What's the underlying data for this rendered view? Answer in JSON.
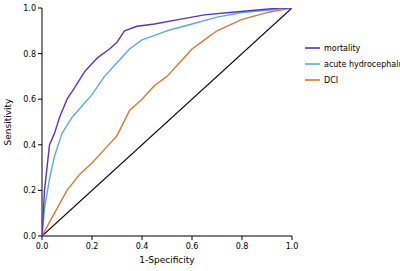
{
  "chart_data": {
    "type": "line",
    "x_label": "1-Specificity",
    "y_label": "Sensitivity",
    "xlim": [
      0,
      1
    ],
    "ylim": [
      0,
      1
    ],
    "xticks": [
      {
        "value": 0,
        "label": "0.0"
      },
      0.2,
      0.4,
      0.6,
      0.8,
      {
        "value": 1,
        "label": "1.0"
      }
    ],
    "yticks": [
      {
        "value": 0,
        "label": "0.0"
      },
      0.2,
      0.4,
      0.6,
      0.8,
      {
        "value": 1,
        "label": "1.0"
      }
    ],
    "grid": false,
    "legend": "right",
    "series": [
      {
        "name": "mortality",
        "color": "#5a32c8",
        "x": [
          0,
          0.01,
          0.03,
          0.05,
          0.07,
          0.1,
          0.13,
          0.17,
          0.22,
          0.27,
          0.3,
          0.33,
          0.38,
          0.45,
          0.55,
          0.65,
          0.75,
          0.85,
          0.95,
          1
        ],
        "values": [
          0,
          0.2,
          0.4,
          0.45,
          0.52,
          0.6,
          0.65,
          0.72,
          0.78,
          0.82,
          0.85,
          0.9,
          0.92,
          0.93,
          0.95,
          0.97,
          0.98,
          0.99,
          1,
          1
        ]
      },
      {
        "name": "acute hydrocephalus",
        "color": "#5ea8e6",
        "x": [
          0,
          0.01,
          0.03,
          0.05,
          0.08,
          0.12,
          0.16,
          0.2,
          0.25,
          0.3,
          0.35,
          0.4,
          0.45,
          0.5,
          0.6,
          0.7,
          0.8,
          0.9,
          1
        ],
        "values": [
          0,
          0.12,
          0.25,
          0.35,
          0.45,
          0.52,
          0.57,
          0.62,
          0.7,
          0.76,
          0.82,
          0.86,
          0.88,
          0.9,
          0.93,
          0.96,
          0.98,
          0.99,
          1
        ]
      },
      {
        "name": "DCI",
        "color": "#d87a30",
        "x": [
          0,
          0.05,
          0.1,
          0.15,
          0.2,
          0.25,
          0.3,
          0.35,
          0.4,
          0.45,
          0.5,
          0.55,
          0.6,
          0.65,
          0.7,
          0.8,
          0.9,
          1
        ],
        "values": [
          0,
          0.1,
          0.2,
          0.27,
          0.32,
          0.38,
          0.44,
          0.55,
          0.6,
          0.66,
          0.7,
          0.76,
          0.82,
          0.86,
          0.9,
          0.95,
          0.98,
          1
        ]
      },
      {
        "color": "#000000",
        "x": [
          0,
          1
        ],
        "values": [
          0,
          1
        ]
      }
    ]
  }
}
